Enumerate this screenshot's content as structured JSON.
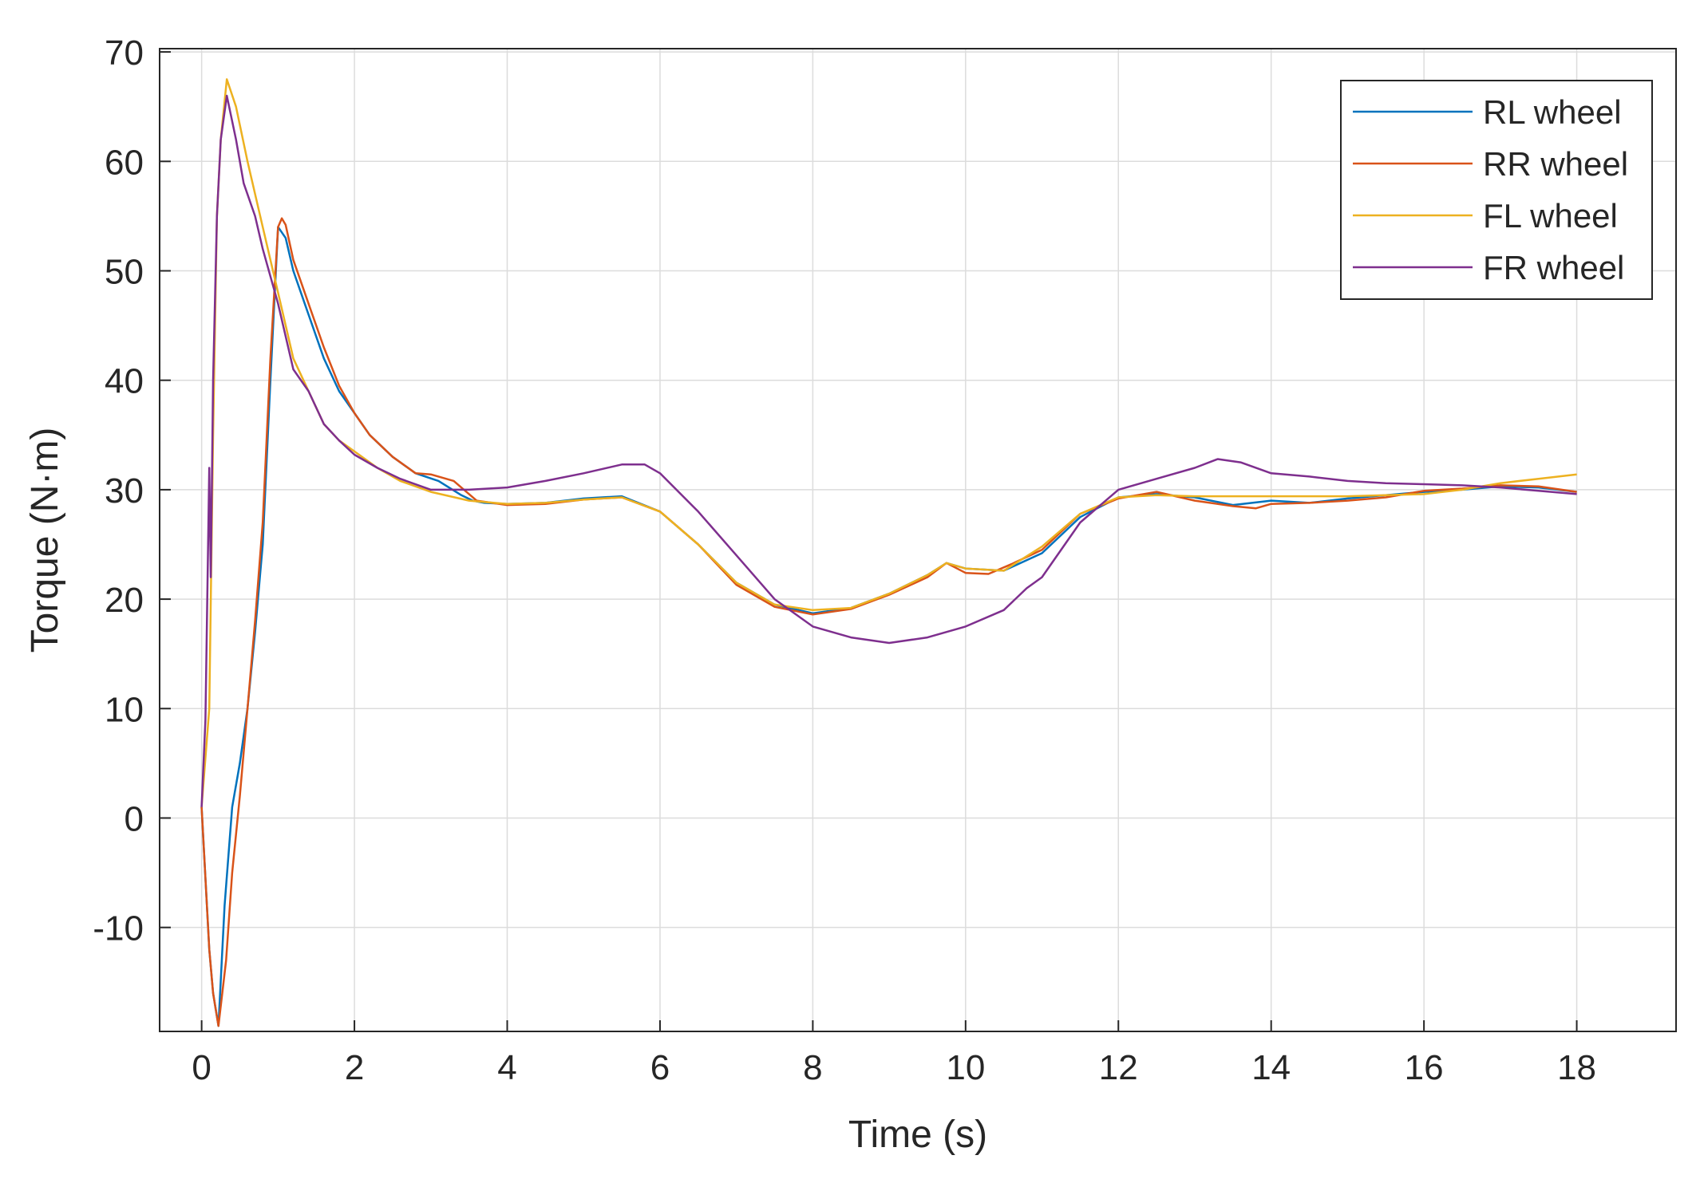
{
  "chart_data": {
    "type": "line",
    "title": "",
    "xlabel": "Time (s)",
    "ylabel": "Torque (N·m)",
    "xlim": [
      -0.55,
      19.3
    ],
    "ylim": [
      -19.5,
      70.3
    ],
    "x_ticks": [
      0,
      2,
      4,
      6,
      8,
      10,
      12,
      14,
      16,
      18
    ],
    "y_ticks": [
      -10,
      0,
      10,
      20,
      30,
      40,
      50,
      60,
      70
    ],
    "x_tick_labels": [
      "0",
      "2",
      "4",
      "6",
      "8",
      "10",
      "12",
      "14",
      "16",
      "18"
    ],
    "y_tick_labels": [
      "-10",
      "0",
      "10",
      "20",
      "30",
      "40",
      "50",
      "60",
      "70"
    ],
    "grid": true,
    "legend_position": "top-right",
    "series": [
      {
        "name": "RL wheel",
        "color": "#0072BD",
        "points": [
          [
            0,
            1
          ],
          [
            0.1,
            -12
          ],
          [
            0.15,
            -16
          ],
          [
            0.22,
            -19
          ],
          [
            0.3,
            -8
          ],
          [
            0.4,
            1
          ],
          [
            0.5,
            5
          ],
          [
            0.6,
            10
          ],
          [
            0.7,
            17
          ],
          [
            0.8,
            25
          ],
          [
            0.9,
            40
          ],
          [
            1.0,
            54
          ],
          [
            1.1,
            53
          ],
          [
            1.2,
            50
          ],
          [
            1.4,
            46
          ],
          [
            1.6,
            42
          ],
          [
            1.8,
            39
          ],
          [
            2.0,
            37
          ],
          [
            2.2,
            35
          ],
          [
            2.5,
            33
          ],
          [
            2.8,
            31.5
          ],
          [
            3.1,
            30.8
          ],
          [
            3.4,
            29.5
          ],
          [
            3.55,
            29
          ],
          [
            3.7,
            28.8
          ],
          [
            4.0,
            28.7
          ],
          [
            4.5,
            28.8
          ],
          [
            5.0,
            29.2
          ],
          [
            5.5,
            29.4
          ],
          [
            6.0,
            28
          ],
          [
            6.5,
            25
          ],
          [
            7.0,
            21.5
          ],
          [
            7.5,
            19.5
          ],
          [
            8.0,
            18.7
          ],
          [
            8.5,
            19.2
          ],
          [
            9.0,
            20.5
          ],
          [
            9.5,
            22.2
          ],
          [
            9.75,
            23.3
          ],
          [
            10.0,
            22.8
          ],
          [
            10.5,
            22.6
          ],
          [
            11.0,
            24.2
          ],
          [
            11.5,
            27.5
          ],
          [
            12.0,
            29.3
          ],
          [
            12.5,
            29.6
          ],
          [
            13.0,
            29.3
          ],
          [
            13.5,
            28.6
          ],
          [
            14.0,
            29
          ],
          [
            14.5,
            28.8
          ],
          [
            15.0,
            29.2
          ],
          [
            15.5,
            29.5
          ],
          [
            16.0,
            29.8
          ],
          [
            16.5,
            30
          ],
          [
            17.0,
            30.3
          ],
          [
            17.5,
            30.2
          ],
          [
            18.0,
            29.8
          ]
        ]
      },
      {
        "name": "RR wheel",
        "color": "#D95319",
        "points": [
          [
            0,
            1
          ],
          [
            0.1,
            -12
          ],
          [
            0.15,
            -16
          ],
          [
            0.22,
            -19
          ],
          [
            0.32,
            -13
          ],
          [
            0.4,
            -5
          ],
          [
            0.5,
            2
          ],
          [
            0.6,
            10
          ],
          [
            0.7,
            18
          ],
          [
            0.8,
            27
          ],
          [
            0.9,
            42
          ],
          [
            1.0,
            54
          ],
          [
            1.05,
            54.8
          ],
          [
            1.1,
            54.2
          ],
          [
            1.2,
            51
          ],
          [
            1.4,
            47
          ],
          [
            1.6,
            43
          ],
          [
            1.8,
            39.5
          ],
          [
            2.0,
            37
          ],
          [
            2.2,
            35
          ],
          [
            2.5,
            33
          ],
          [
            2.8,
            31.5
          ],
          [
            3.0,
            31.4
          ],
          [
            3.3,
            30.8
          ],
          [
            3.6,
            29
          ],
          [
            4.0,
            28.6
          ],
          [
            4.5,
            28.7
          ],
          [
            5.0,
            29.1
          ],
          [
            5.5,
            29.3
          ],
          [
            6.0,
            28
          ],
          [
            6.5,
            25
          ],
          [
            7.0,
            21.3
          ],
          [
            7.5,
            19.3
          ],
          [
            8.0,
            18.6
          ],
          [
            8.5,
            19.1
          ],
          [
            9.0,
            20.4
          ],
          [
            9.5,
            22
          ],
          [
            9.75,
            23.3
          ],
          [
            10.0,
            22.4
          ],
          [
            10.3,
            22.3
          ],
          [
            10.6,
            23.2
          ],
          [
            11.0,
            24.5
          ],
          [
            11.5,
            27.8
          ],
          [
            12.0,
            29.2
          ],
          [
            12.5,
            29.8
          ],
          [
            13.0,
            29
          ],
          [
            13.5,
            28.5
          ],
          [
            13.8,
            28.3
          ],
          [
            14.0,
            28.7
          ],
          [
            14.5,
            28.8
          ],
          [
            15.0,
            29
          ],
          [
            15.5,
            29.3
          ],
          [
            16.0,
            29.9
          ],
          [
            16.5,
            30.1
          ],
          [
            17.0,
            30.4
          ],
          [
            17.5,
            30.3
          ],
          [
            18.0,
            29.8
          ]
        ]
      },
      {
        "name": "FL wheel",
        "color": "#EDB120",
        "points": [
          [
            0,
            1
          ],
          [
            0.1,
            10
          ],
          [
            0.15,
            35
          ],
          [
            0.2,
            55
          ],
          [
            0.25,
            62
          ],
          [
            0.33,
            67.5
          ],
          [
            0.45,
            65
          ],
          [
            0.6,
            60
          ],
          [
            0.8,
            54
          ],
          [
            1.0,
            48
          ],
          [
            1.2,
            42
          ],
          [
            1.4,
            39
          ],
          [
            1.6,
            36
          ],
          [
            1.8,
            34.5
          ],
          [
            2.0,
            33.5
          ],
          [
            2.3,
            32
          ],
          [
            2.6,
            30.8
          ],
          [
            3.0,
            29.8
          ],
          [
            3.5,
            29
          ],
          [
            4.0,
            28.7
          ],
          [
            4.5,
            28.8
          ],
          [
            5.0,
            29.1
          ],
          [
            5.5,
            29.3
          ],
          [
            6.0,
            28
          ],
          [
            6.5,
            25
          ],
          [
            7.0,
            21.5
          ],
          [
            7.5,
            19.5
          ],
          [
            8.0,
            19
          ],
          [
            8.5,
            19.2
          ],
          [
            9.0,
            20.5
          ],
          [
            9.5,
            22.2
          ],
          [
            9.75,
            23.3
          ],
          [
            10.0,
            22.8
          ],
          [
            10.5,
            22.6
          ],
          [
            11.0,
            24.8
          ],
          [
            11.5,
            27.8
          ],
          [
            12.0,
            29.3
          ],
          [
            12.5,
            29.5
          ],
          [
            13.0,
            29.4
          ],
          [
            14.0,
            29.4
          ],
          [
            15.0,
            29.4
          ],
          [
            16.0,
            29.6
          ],
          [
            16.5,
            30
          ],
          [
            17.0,
            30.6
          ],
          [
            17.5,
            31
          ],
          [
            18.0,
            31.4
          ]
        ]
      },
      {
        "name": "FR wheel",
        "color": "#7E2F8E",
        "points": [
          [
            0,
            1
          ],
          [
            0.05,
            9
          ],
          [
            0.1,
            32
          ],
          [
            0.12,
            22
          ],
          [
            0.15,
            40
          ],
          [
            0.2,
            55
          ],
          [
            0.25,
            62
          ],
          [
            0.33,
            66
          ],
          [
            0.45,
            62
          ],
          [
            0.55,
            58
          ],
          [
            0.7,
            55
          ],
          [
            0.8,
            52
          ],
          [
            1.0,
            47
          ],
          [
            1.2,
            41
          ],
          [
            1.4,
            39
          ],
          [
            1.6,
            36
          ],
          [
            1.8,
            34.5
          ],
          [
            2.0,
            33.2
          ],
          [
            2.3,
            32
          ],
          [
            2.6,
            31
          ],
          [
            3.0,
            30
          ],
          [
            3.5,
            30
          ],
          [
            4.0,
            30.2
          ],
          [
            4.5,
            30.8
          ],
          [
            5.0,
            31.5
          ],
          [
            5.5,
            32.3
          ],
          [
            5.8,
            32.3
          ],
          [
            6.0,
            31.5
          ],
          [
            6.5,
            28
          ],
          [
            7.0,
            24
          ],
          [
            7.5,
            20
          ],
          [
            8.0,
            17.5
          ],
          [
            8.5,
            16.5
          ],
          [
            9.0,
            16
          ],
          [
            9.5,
            16.5
          ],
          [
            10.0,
            17.5
          ],
          [
            10.5,
            19
          ],
          [
            10.8,
            21
          ],
          [
            11.0,
            22
          ],
          [
            11.5,
            27
          ],
          [
            12.0,
            30
          ],
          [
            12.5,
            31
          ],
          [
            13.0,
            32
          ],
          [
            13.3,
            32.8
          ],
          [
            13.6,
            32.5
          ],
          [
            14.0,
            31.5
          ],
          [
            14.5,
            31.2
          ],
          [
            15.0,
            30.8
          ],
          [
            15.5,
            30.6
          ],
          [
            16.0,
            30.5
          ],
          [
            16.5,
            30.4
          ],
          [
            17.0,
            30.2
          ],
          [
            17.5,
            29.9
          ],
          [
            18.0,
            29.6
          ]
        ]
      }
    ]
  }
}
